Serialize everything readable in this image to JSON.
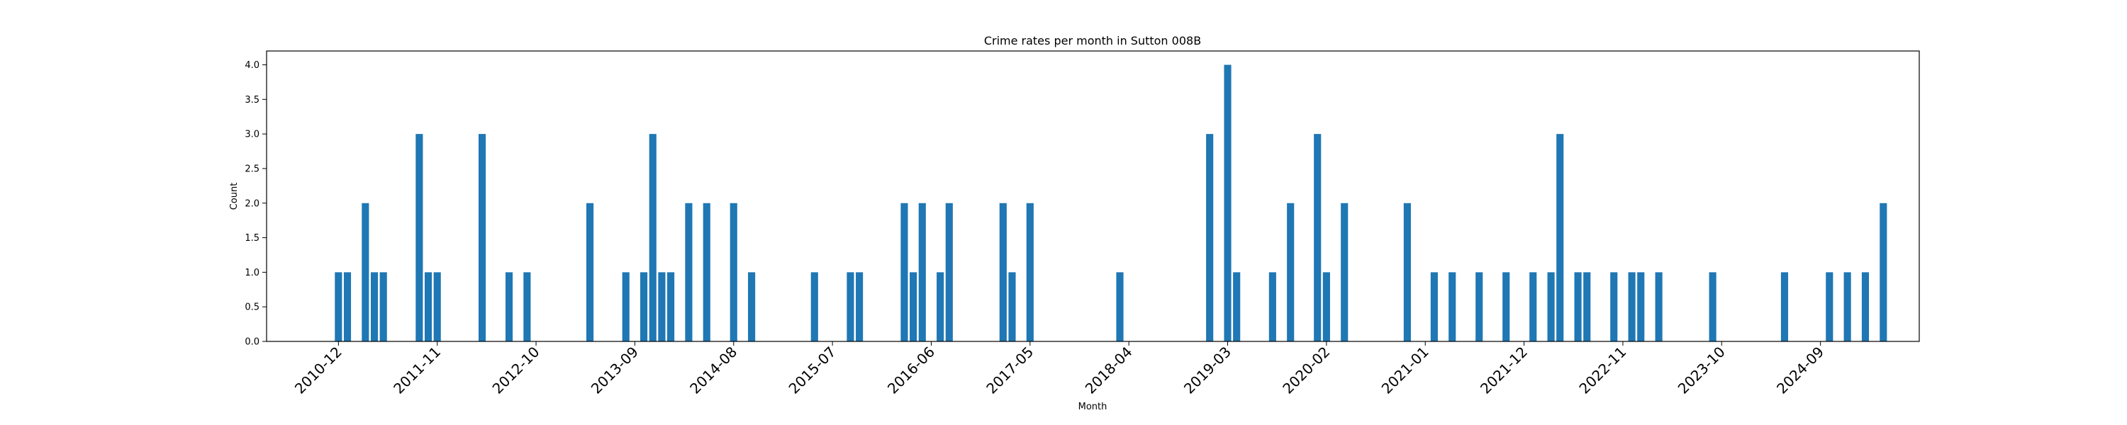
{
  "chart_data": {
    "type": "bar",
    "title": "Crime rates per month in Sutton 008B",
    "xlabel": "Month",
    "ylabel": "Count",
    "bar_color": "#1f77b4",
    "ylim": [
      0,
      4.2
    ],
    "yticks": [
      "0.0",
      "0.5",
      "1.0",
      "1.5",
      "2.0",
      "2.5",
      "3.0",
      "3.5",
      "4.0"
    ],
    "xlim": [
      "2010-04",
      "2025-08"
    ],
    "xtick_labels": [
      "2010-12",
      "2011-11",
      "2012-10",
      "2013-09",
      "2014-08",
      "2015-07",
      "2016-06",
      "2017-05",
      "2018-04",
      "2019-03",
      "2020-02",
      "2021-01",
      "2021-12",
      "2022-11",
      "2023-10",
      "2024-09"
    ],
    "grid": false,
    "x": [
      "2010-12",
      "2011-01",
      "2011-03",
      "2011-04",
      "2011-05",
      "2011-09",
      "2011-10",
      "2011-11",
      "2012-04",
      "2012-07",
      "2012-09",
      "2013-04",
      "2013-08",
      "2013-10",
      "2013-11",
      "2013-12",
      "2014-01",
      "2014-03",
      "2014-05",
      "2014-08",
      "2014-10",
      "2015-05",
      "2015-09",
      "2015-10",
      "2016-03",
      "2016-04",
      "2016-05",
      "2016-07",
      "2016-08",
      "2017-02",
      "2017-03",
      "2017-05",
      "2018-03",
      "2019-01",
      "2019-03",
      "2019-04",
      "2019-08",
      "2019-10",
      "2020-01",
      "2020-02",
      "2020-04",
      "2020-11",
      "2021-02",
      "2021-04",
      "2021-07",
      "2021-10",
      "2022-01",
      "2022-03",
      "2022-04",
      "2022-06",
      "2022-07",
      "2022-10",
      "2022-12",
      "2023-01",
      "2023-03",
      "2023-09",
      "2024-05",
      "2024-10",
      "2024-12",
      "2025-02",
      "2025-04"
    ],
    "values": [
      1,
      1,
      2,
      1,
      1,
      3,
      1,
      1,
      3,
      1,
      1,
      2,
      1,
      1,
      3,
      1,
      1,
      2,
      2,
      2,
      1,
      1,
      1,
      1,
      2,
      1,
      2,
      1,
      2,
      2,
      1,
      2,
      1,
      3,
      4,
      1,
      1,
      2,
      3,
      1,
      2,
      2,
      1,
      1,
      1,
      1,
      1,
      1,
      3,
      1,
      1,
      1,
      1,
      1,
      1,
      1,
      1,
      1,
      1,
      1,
      2
    ]
  }
}
